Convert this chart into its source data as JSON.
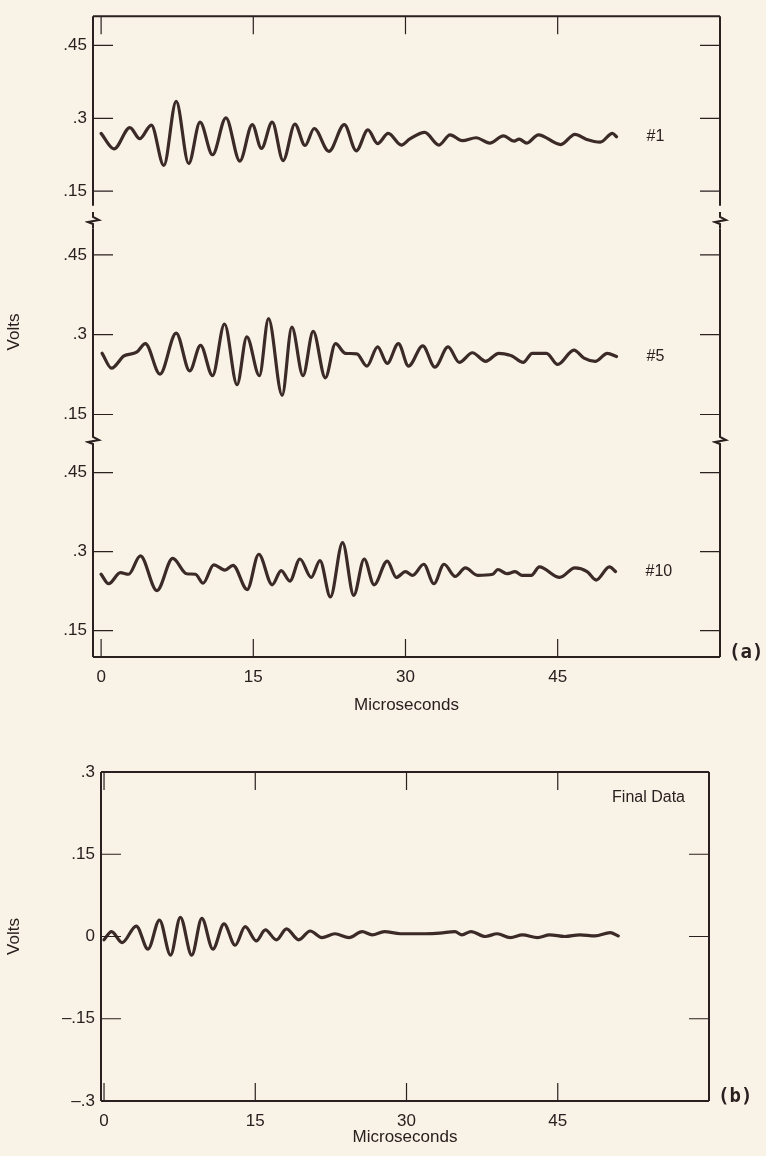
{
  "chart_data": [
    {
      "type": "line",
      "marker": "none",
      "xlim": [
        -0.8,
        61
      ],
      "xticks": [
        0,
        15,
        30,
        45
      ],
      "ylim": [
        0.12,
        0.51
      ],
      "yticks": [
        {
          "value": 0.15,
          "label": ".15"
        },
        {
          "value": 0.3,
          "label": ".3"
        },
        {
          "value": 0.45,
          "label": ".45"
        }
      ],
      "tick_labels": "y",
      "x": [
        0,
        1.27,
        2.84,
        3.8,
        4.95,
        6.18,
        7.4,
        8.63,
        9.75,
        10.98,
        12.3,
        13.67,
        14.9,
        15.8,
        16.86,
        17.94,
        19.1,
        20.1,
        21,
        22.45,
        23.97,
        25.15,
        26.3,
        27.25,
        28.3,
        29.6,
        30.4,
        31.9,
        33.3,
        34.4,
        35.6,
        36.96,
        38.3,
        39.66,
        40.7,
        41.2,
        41.96,
        43.1,
        45.3,
        46.7,
        47.8,
        49.2,
        50.4,
        50.8
      ],
      "series": [
        {
          "name": "#1",
          "color": "#3b2a28",
          "values": [
            0.269,
            0.237,
            0.281,
            0.258,
            0.286,
            0.203,
            0.335,
            0.207,
            0.292,
            0.225,
            0.301,
            0.212,
            0.287,
            0.238,
            0.292,
            0.213,
            0.288,
            0.244,
            0.279,
            0.232,
            0.287,
            0.233,
            0.276,
            0.248,
            0.269,
            0.245,
            0.257,
            0.271,
            0.245,
            0.266,
            0.254,
            0.26,
            0.249,
            0.264,
            0.253,
            0.257,
            0.249,
            0.266,
            0.246,
            0.267,
            0.257,
            0.251,
            0.269,
            0.262
          ]
        }
      ]
    },
    {
      "type": "line",
      "marker": "none",
      "xlim": [
        -0.8,
        61
      ],
      "xticks": [
        0,
        15,
        30,
        45
      ],
      "ylim": [
        0.11,
        0.5
      ],
      "yticks": [
        {
          "value": 0.15,
          "label": ".15"
        },
        {
          "value": 0.3,
          "label": ".3"
        },
        {
          "value": 0.45,
          "label": ".45"
        }
      ],
      "tick_labels": "y",
      "ylabel": "Volts",
      "x": [
        0.1,
        1.03,
        2.25,
        3.5,
        4.36,
        5.8,
        7.4,
        8.73,
        9.8,
        10.98,
        12.16,
        13.4,
        14.36,
        15.6,
        16.5,
        17.84,
        18.8,
        19.9,
        20.9,
        22.1,
        23.1,
        24.07,
        25.2,
        26.2,
        27.25,
        28.2,
        29.3,
        30.3,
        31.7,
        32.9,
        34.2,
        35.3,
        36.6,
        37.9,
        39.2,
        40.5,
        41.6,
        42.5,
        43.9,
        45,
        46.6,
        47.6,
        48.7,
        49.9,
        50.8
      ],
      "series": [
        {
          "name": "#5",
          "color": "#3b2a28",
          "values": [
            0.265,
            0.237,
            0.26,
            0.267,
            0.283,
            0.226,
            0.303,
            0.232,
            0.28,
            0.223,
            0.32,
            0.206,
            0.296,
            0.223,
            0.33,
            0.186,
            0.314,
            0.223,
            0.306,
            0.219,
            0.283,
            0.265,
            0.264,
            0.241,
            0.277,
            0.246,
            0.283,
            0.241,
            0.279,
            0.239,
            0.277,
            0.248,
            0.266,
            0.25,
            0.265,
            0.26,
            0.248,
            0.265,
            0.265,
            0.244,
            0.271,
            0.256,
            0.25,
            0.265,
            0.259
          ]
        }
      ]
    },
    {
      "type": "line",
      "marker": "none",
      "xlim": [
        -0.8,
        61
      ],
      "xticks": [
        0,
        15,
        30,
        45
      ],
      "ylim": [
        0.1,
        0.5
      ],
      "yticks": [
        {
          "value": 0.15,
          "label": ".15"
        },
        {
          "value": 0.3,
          "label": ".3"
        },
        {
          "value": 0.45,
          "label": ".45"
        }
      ],
      "xlabel": "Microseconds",
      "annotations": [
        "(a)"
      ],
      "x": [
        0,
        0.74,
        1.9,
        2.7,
        3.87,
        5.5,
        7.06,
        8.43,
        9.3,
        10.05,
        11.1,
        12.2,
        13,
        14.4,
        15.54,
        16.86,
        17.75,
        18.6,
        19.6,
        20.7,
        21.57,
        22.6,
        23.8,
        24.9,
        25.93,
        26.9,
        28.2,
        29.1,
        30,
        30.7,
        31.8,
        32.8,
        33.8,
        34.9,
        35.9,
        37.1,
        38.6,
        39.1,
        40,
        40.8,
        41.5,
        42.4,
        43.2,
        45.2,
        46.7,
        47.9,
        48.8,
        50.1,
        50.7
      ],
      "series": [
        {
          "name": "#10",
          "color": "#3b2a28",
          "values": [
            0.257,
            0.239,
            0.26,
            0.257,
            0.292,
            0.226,
            0.287,
            0.258,
            0.257,
            0.24,
            0.275,
            0.265,
            0.274,
            0.228,
            0.295,
            0.237,
            0.264,
            0.244,
            0.286,
            0.251,
            0.283,
            0.214,
            0.317,
            0.217,
            0.286,
            0.237,
            0.282,
            0.251,
            0.262,
            0.255,
            0.276,
            0.239,
            0.276,
            0.253,
            0.269,
            0.255,
            0.257,
            0.266,
            0.258,
            0.262,
            0.255,
            0.255,
            0.271,
            0.251,
            0.269,
            0.262,
            0.246,
            0.271,
            0.262
          ]
        }
      ]
    },
    {
      "type": "line",
      "marker": "none",
      "xlim": [
        -0.3,
        60
      ],
      "xticks": [
        0,
        15,
        30,
        45
      ],
      "ylim": [
        -0.3,
        0.3
      ],
      "yticks": [
        {
          "value": -0.3,
          "label": "–.3"
        },
        {
          "value": -0.15,
          "label": "–.15"
        },
        0,
        {
          "value": 0.15,
          "label": ".15"
        },
        {
          "value": 0.3,
          "label": ".3"
        }
      ],
      "xlabel": "Microseconds",
      "ylabel": "Volts",
      "annotations": [
        "(b)"
      ],
      "x": [
        0,
        0.74,
        1.8,
        3.2,
        4.36,
        5.5,
        6.6,
        7.57,
        8.7,
        9.7,
        10.8,
        11.9,
        13,
        14,
        15.1,
        16,
        17.1,
        18.1,
        19.3,
        20.45,
        21.6,
        22.9,
        24.3,
        25.6,
        26.6,
        27.8,
        29.4,
        31.8,
        33.3,
        34.8,
        35.5,
        36.4,
        37.8,
        39,
        40.3,
        41.5,
        43,
        44.2,
        45.7,
        47.2,
        48.7,
        50.2,
        51
      ],
      "series": [
        {
          "name": "Final Data",
          "color": "#3b2a28",
          "values": [
            -0.006,
            0.009,
            -0.011,
            0.019,
            -0.023,
            0.03,
            -0.034,
            0.035,
            -0.034,
            0.033,
            -0.023,
            0.023,
            -0.016,
            0.018,
            -0.008,
            0.012,
            -0.006,
            0.014,
            -0.006,
            0.01,
            -0.002,
            0.005,
            -0.002,
            0.009,
            0.003,
            0.009,
            0.005,
            0.005,
            0.006,
            0.009,
            0.003,
            0.009,
            0,
            0.005,
            -0.002,
            0.003,
            -0.002,
            0.003,
            0,
            0.003,
            0.001,
            0.007,
            0.001
          ]
        }
      ]
    }
  ]
}
